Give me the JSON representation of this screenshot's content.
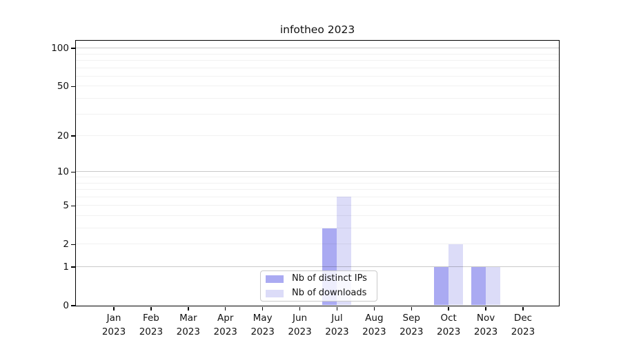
{
  "chart_data": {
    "type": "bar",
    "title": "infotheo 2023",
    "categories": [
      "Jan 2023",
      "Feb 2023",
      "Mar 2023",
      "Apr 2023",
      "May 2023",
      "Jun 2023",
      "Jul 2023",
      "Aug 2023",
      "Sep 2023",
      "Oct 2023",
      "Nov 2023",
      "Dec 2023"
    ],
    "series": [
      {
        "name": "Nb of distinct IPs",
        "color": "#aaaaf2",
        "values": [
          0,
          0,
          0,
          0,
          0,
          0,
          3,
          0,
          0,
          1,
          1,
          0
        ]
      },
      {
        "name": "Nb of downloads",
        "color": "#dcdcf8",
        "values": [
          0,
          0,
          0,
          0,
          0,
          0,
          6,
          0,
          0,
          2,
          1,
          0
        ]
      }
    ],
    "xlabel": "",
    "ylabel": "",
    "yscale": "log1p",
    "ylim": [
      0,
      115
    ],
    "yticks": [
      0,
      1,
      2,
      5,
      10,
      20,
      50,
      100
    ],
    "major_gridlines": [
      1,
      10,
      100
    ],
    "minor_gridlines": [
      2,
      3,
      4,
      5,
      6,
      7,
      8,
      9,
      20,
      30,
      40,
      50,
      60,
      70,
      80,
      90
    ],
    "grid": "on",
    "legend_position": "lower center",
    "colors": {
      "major_grid": "rgba(0,0,0,0.21)",
      "minor_grid": "rgba(0,0,0,0.055)",
      "spine": "#000000",
      "background": "#ffffff"
    }
  }
}
